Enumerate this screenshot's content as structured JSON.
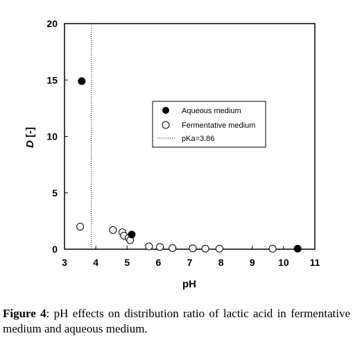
{
  "chart_data": {
    "type": "scatter",
    "xlabel": "pH",
    "ylabel_italic": "D",
    "ylabel_rest": " [-]",
    "xlim": [
      3,
      11
    ],
    "ylim": [
      0,
      20
    ],
    "xticks": [
      3,
      4,
      5,
      6,
      7,
      8,
      9,
      10,
      11
    ],
    "yticks": [
      0,
      5,
      10,
      15,
      20
    ],
    "grid": false,
    "legend_position": "center",
    "series": [
      {
        "name": "Aqueous medium",
        "marker": "filled-circle",
        "points": [
          {
            "x": 3.55,
            "y": 14.9
          },
          {
            "x": 5.15,
            "y": 1.3
          },
          {
            "x": 10.45,
            "y": 0.05
          }
        ]
      },
      {
        "name": "Fermentative medium",
        "marker": "open-circle",
        "points": [
          {
            "x": 3.5,
            "y": 2.0
          },
          {
            "x": 4.55,
            "y": 1.7
          },
          {
            "x": 4.85,
            "y": 1.5
          },
          {
            "x": 4.9,
            "y": 1.2
          },
          {
            "x": 5.05,
            "y": 1.0
          },
          {
            "x": 5.1,
            "y": 0.8
          },
          {
            "x": 5.7,
            "y": 0.25
          },
          {
            "x": 6.05,
            "y": 0.2
          },
          {
            "x": 6.45,
            "y": 0.1
          },
          {
            "x": 7.1,
            "y": 0.08
          },
          {
            "x": 7.5,
            "y": 0.05
          },
          {
            "x": 7.95,
            "y": 0.05
          },
          {
            "x": 9.65,
            "y": 0.05
          }
        ]
      }
    ],
    "reference_line": {
      "name": "pKa=3.86",
      "x": 3.86,
      "style": "dotted"
    }
  },
  "caption": {
    "label": "Figure 4",
    "text": ": pH effects on distribution ratio of lactic acid in fermentative medium and aqueous medium."
  },
  "colors": {
    "marker": "#000000",
    "background": "#ffffff"
  }
}
